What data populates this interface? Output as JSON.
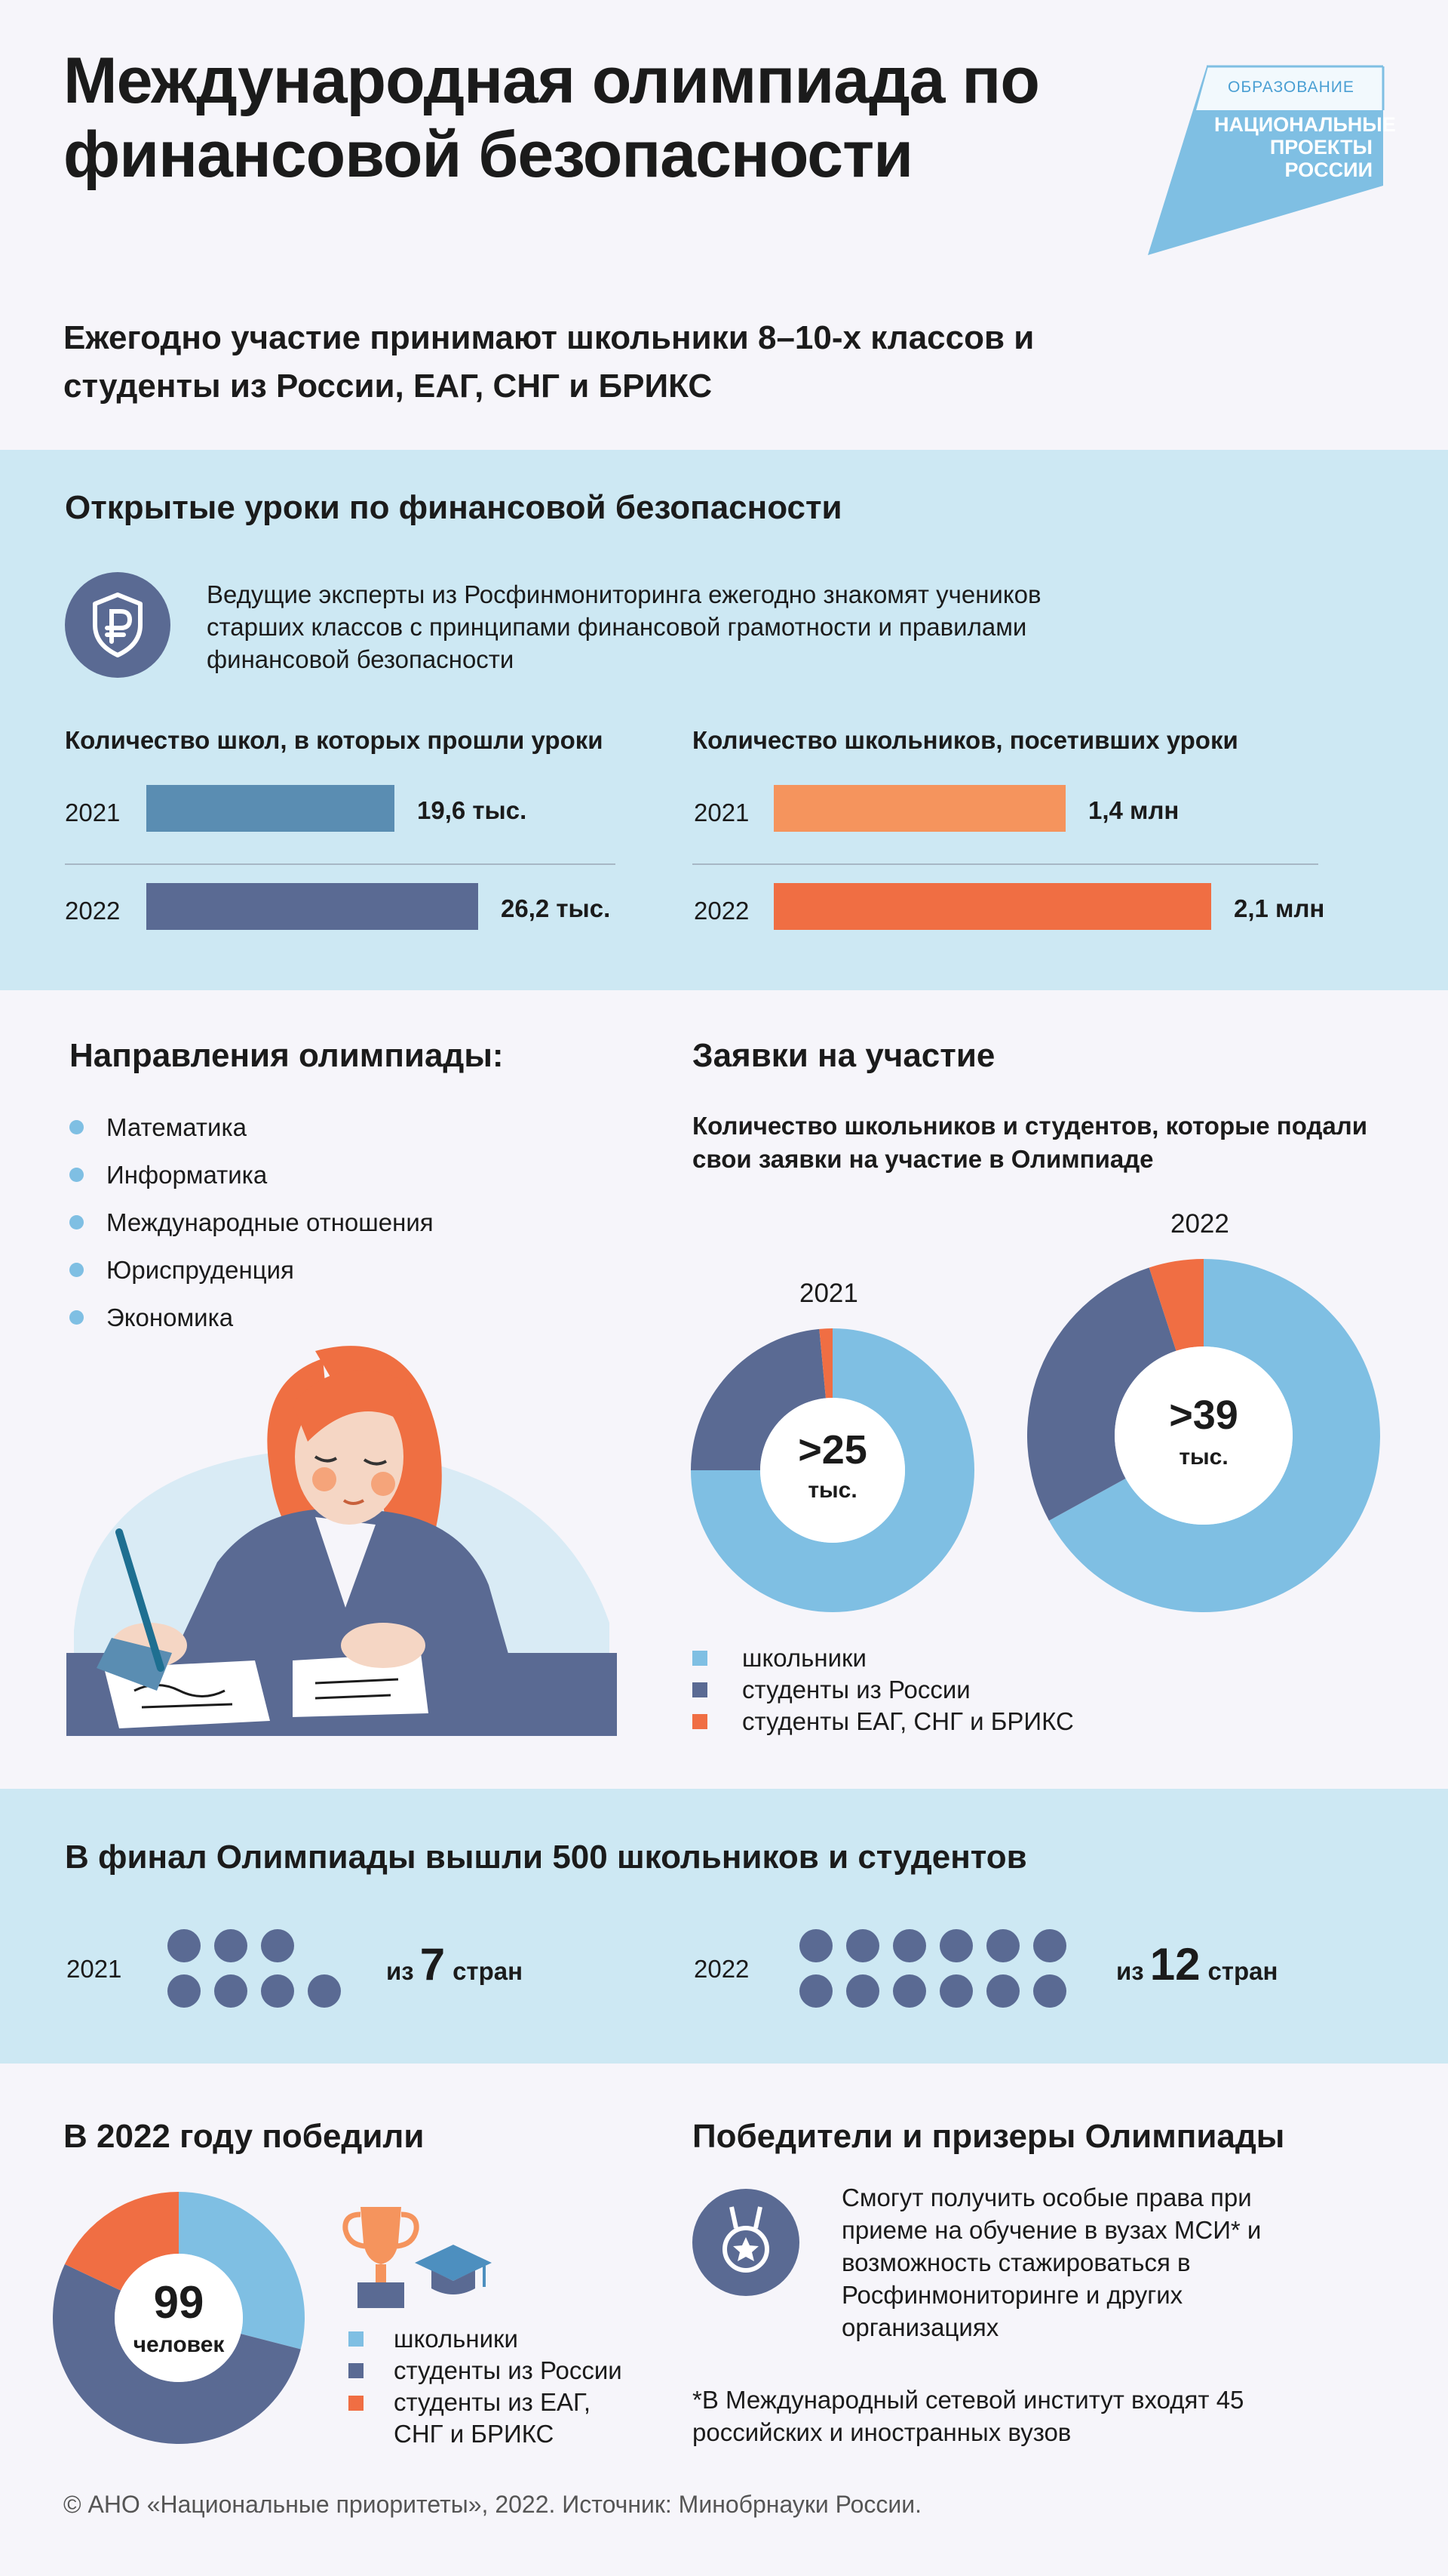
{
  "header": {
    "title": "Международная олимпиада по финансовой безопасности",
    "subtitle": "Ежегодно участие принимают школьники 8–10-х классов и студенты из России, ЕАГ, СНГ и БРИКС",
    "logo": {
      "top": "ОБРАЗОВАНИЕ",
      "line1": "НАЦИОНАЛЬНЫЕ",
      "line2": "ПРОЕКТЫ",
      "line3": "РОССИИ"
    }
  },
  "lessons": {
    "title": "Открытые уроки по финансовой безопасности",
    "description": "Ведущие эксперты из Росфинмониторинга ежегодно знакомят учеников старших классов с принципами финансовой грамотности и правилами финансовой безопасности",
    "icon": "ruble-shield-icon"
  },
  "directions": {
    "title": "Направления олимпиады:",
    "items": [
      "Математика",
      "Информатика",
      "Международные отношения",
      "Юриспруденция",
      "Экономика"
    ]
  },
  "applications": {
    "title": "Заявки на участие",
    "subtitle": "Количество школьников и студентов, которые подали свои заявки на участие в Олимпиаде"
  },
  "final": {
    "title": "В финал Олимпиады вышли 500 школьников и студентов",
    "rows": [
      {
        "year": "2021",
        "dots": 7,
        "prefix": "из",
        "number": "7",
        "suffix": "стран"
      },
      {
        "year": "2022",
        "dots": 12,
        "prefix": "из",
        "number": "12",
        "suffix": "стран"
      }
    ]
  },
  "winners": {
    "title": "В 2022 году победили",
    "icons": [
      "trophy-icon",
      "graduation-cap-icon"
    ]
  },
  "privileges": {
    "title": "Победители и призеры Олимпиады",
    "text": "Смогут получить особые права при приеме на обучение в вузах МСИ* и возможность стажироваться в Росфинмониторинге и других организациях",
    "footnote": "*В Международный сетевой институт входят 45 российских и иностранных вузов",
    "icon": "medal-icon"
  },
  "footer": {
    "text": "© АНО «Национальные приоритеты», 2022. Источник: Минобрнауки России."
  },
  "colors": {
    "light_blue": "#7fbfe3",
    "dark_blue": "#5a6a93",
    "orange": "#f06e43",
    "band": "#cde8f3"
  },
  "chart_data": [
    {
      "type": "bar",
      "title": "Количество школ, в которых прошли уроки",
      "categories": [
        "2021",
        "2022"
      ],
      "values": [
        19.6,
        26.2
      ],
      "labels": [
        "19,6 тыс.",
        "26,2 тыс."
      ],
      "unit": "тыс.",
      "max": 26.2
    },
    {
      "type": "bar",
      "title": "Количество школьников, посетивших уроки",
      "categories": [
        "2021",
        "2022"
      ],
      "values": [
        1.4,
        2.1
      ],
      "labels": [
        "1,4 млн",
        "2,1 млн"
      ],
      "unit": "млн",
      "max": 2.1
    },
    {
      "type": "pie",
      "title": "2021",
      "center_value": ">25",
      "center_unit": "тыс.",
      "slices": [
        {
          "name": "школьники",
          "value": 75,
          "color": "#7fbfe3"
        },
        {
          "name": "студенты из России",
          "value": 23.5,
          "color": "#5a6a93"
        },
        {
          "name": "студенты ЕАГ, СНГ и БРИКС",
          "value": 1.5,
          "color": "#f06e43"
        }
      ]
    },
    {
      "type": "pie",
      "title": "2022",
      "center_value": ">39",
      "center_unit": "тыс.",
      "slices": [
        {
          "name": "школьники",
          "value": 67,
          "color": "#7fbfe3"
        },
        {
          "name": "студенты из России",
          "value": 28,
          "color": "#5a6a93"
        },
        {
          "name": "студенты ЕАГ, СНГ и БРИКС",
          "value": 5,
          "color": "#f06e43"
        }
      ]
    },
    {
      "type": "pie",
      "title": "В 2022 году победили",
      "center_value": "99",
      "center_unit": "человек",
      "slices": [
        {
          "name": "школьники",
          "value": 29,
          "color": "#7fbfe3"
        },
        {
          "name": "студенты из России",
          "value": 53,
          "color": "#5a6a93"
        },
        {
          "name": "студенты из ЕАГ, СНГ и БРИКС",
          "value": 18,
          "color": "#f06e43"
        }
      ]
    }
  ],
  "legend_apps": [
    {
      "label": "школьники",
      "color": "#7fbfe3"
    },
    {
      "label": "студенты из России",
      "color": "#5a6a93"
    },
    {
      "label": "студенты ЕАГ, СНГ и БРИКС",
      "color": "#f06e43"
    }
  ],
  "legend_winners": [
    {
      "label": "школьники",
      "color": "#7fbfe3"
    },
    {
      "label": "студенты из России",
      "color": "#5a6a93"
    },
    {
      "label": "студенты из ЕАГ, СНГ и БРИКС",
      "color": "#f06e43"
    }
  ]
}
